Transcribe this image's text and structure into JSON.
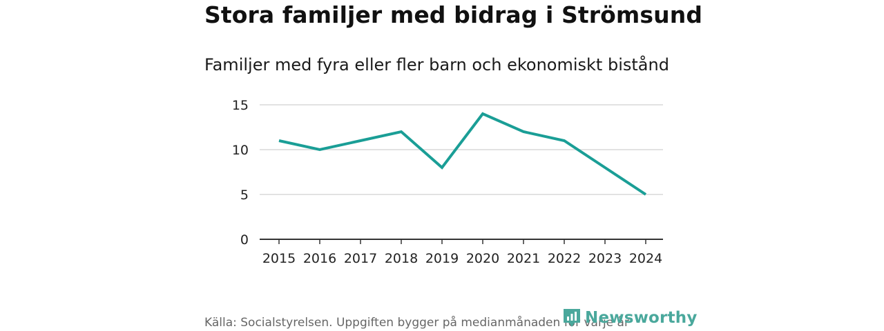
{
  "header": {
    "title": "Stora familjer med bidrag i Strömsund",
    "subtitle": "Familjer med fyra eller fler barn och ekonomiskt bistånd"
  },
  "footer": {
    "source": "Källa: Socialstyrelsen. Uppgiften bygger på medianmånaden för varje år",
    "logo_text": "Newsworthy",
    "logo_icon": "newsworthy-bars-icon"
  },
  "colors": {
    "line": "#1a9e96",
    "grid": "#d9d9d9",
    "axis": "#333333",
    "brand": "#4aa89c"
  },
  "chart_data": {
    "type": "line",
    "title": "Stora familjer med bidrag i Strömsund",
    "subtitle": "Familjer med fyra eller fler barn och ekonomiskt bistånd",
    "xlabel": "",
    "ylabel": "",
    "x": [
      "2015",
      "2016",
      "2017",
      "2018",
      "2019",
      "2020",
      "2021",
      "2022",
      "2023",
      "2024"
    ],
    "series": [
      {
        "name": "Familjer",
        "values": [
          11,
          10,
          11,
          12,
          8,
          14,
          12,
          11,
          8,
          5
        ]
      }
    ],
    "ylim": [
      0,
      15
    ],
    "yticks": [
      "0",
      "5",
      "10",
      "15"
    ],
    "grid": true,
    "legend": "none"
  }
}
